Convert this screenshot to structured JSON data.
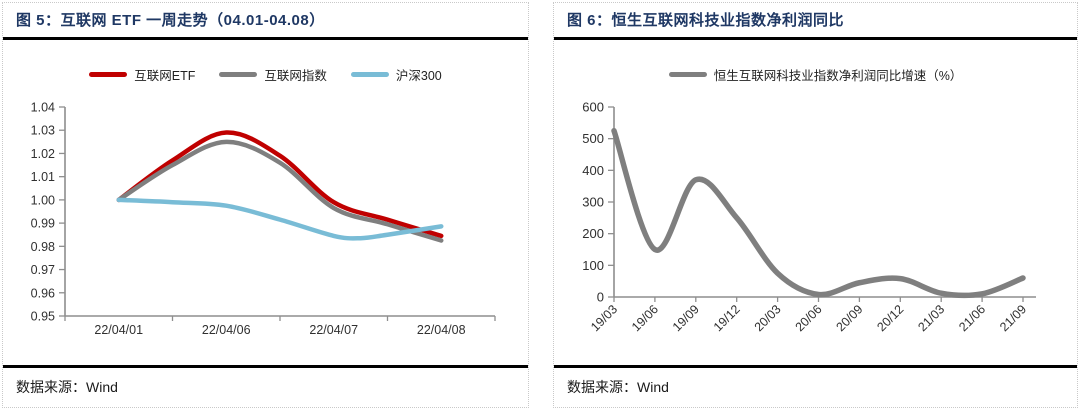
{
  "colors": {
    "title": "#1f3864",
    "rule": "#000000",
    "axis": "#8e8e8e",
    "tick_text": "#303030",
    "panel_border": "#c9c9c9"
  },
  "panels": [
    {
      "title": "图 5：互联网 ETF 一周走势（04.01-04.08）",
      "source": "数据来源：Wind"
    },
    {
      "title": "图 6：恒生互联网科技业指数净利润同比",
      "source": "数据来源：Wind"
    }
  ],
  "chart_data": [
    {
      "type": "line",
      "title": "互联网 ETF 一周走势（04.01-04.08）",
      "x_labels": [
        "22/04/01",
        "22/04/06",
        "22/04/07",
        "22/04/08"
      ],
      "y_ticks": [
        "1.04",
        "1.03",
        "1.02",
        "1.01",
        "1.00",
        "0.99",
        "0.98",
        "0.97",
        "0.96",
        "0.95"
      ],
      "ylim": [
        0.95,
        1.04
      ],
      "grid": false,
      "legend_position": "top",
      "series": [
        {
          "name": "互联网ETF",
          "color": "#c00000",
          "points": [
            [
              0.125,
              1.0
            ],
            [
              0.25,
              1.017
            ],
            [
              0.375,
              1.029
            ],
            [
              0.5,
              1.019
            ],
            [
              0.625,
              0.999
            ],
            [
              0.75,
              0.9915
            ],
            [
              0.875,
              0.9845
            ]
          ]
        },
        {
          "name": "互联网指数",
          "color": "#7f7f7f",
          "points": [
            [
              0.125,
              1.0
            ],
            [
              0.25,
              1.015
            ],
            [
              0.375,
              1.025
            ],
            [
              0.5,
              1.016
            ],
            [
              0.625,
              0.9965
            ],
            [
              0.75,
              0.9895
            ],
            [
              0.875,
              0.9825
            ]
          ]
        },
        {
          "name": "沪深300",
          "color": "#79bcd6",
          "points": [
            [
              0.125,
              1.0
            ],
            [
              0.25,
              0.999
            ],
            [
              0.375,
              0.9975
            ],
            [
              0.5,
              0.9915
            ],
            [
              0.625,
              0.9845
            ],
            [
              0.6875,
              0.9835
            ],
            [
              0.75,
              0.985
            ],
            [
              0.875,
              0.9886
            ]
          ]
        }
      ]
    },
    {
      "type": "line",
      "title": "恒生互联网科技业指数净利润同比",
      "x_labels": [
        "19/03",
        "19/06",
        "19/09",
        "19/12",
        "20/03",
        "20/06",
        "20/09",
        "20/12",
        "21/03",
        "21/06",
        "21/09"
      ],
      "y_ticks": [
        "600",
        "500",
        "400",
        "300",
        "200",
        "100",
        "0"
      ],
      "ylim": [
        0,
        600
      ],
      "grid": false,
      "legend_position": "top",
      "series": [
        {
          "name": "恒生互联网科技业指数净利润同比增速（%）",
          "color": "#7f7f7f",
          "values": [
            525,
            150,
            370,
            250,
            75,
            8,
            45,
            58,
            12,
            10,
            60
          ]
        }
      ]
    }
  ]
}
